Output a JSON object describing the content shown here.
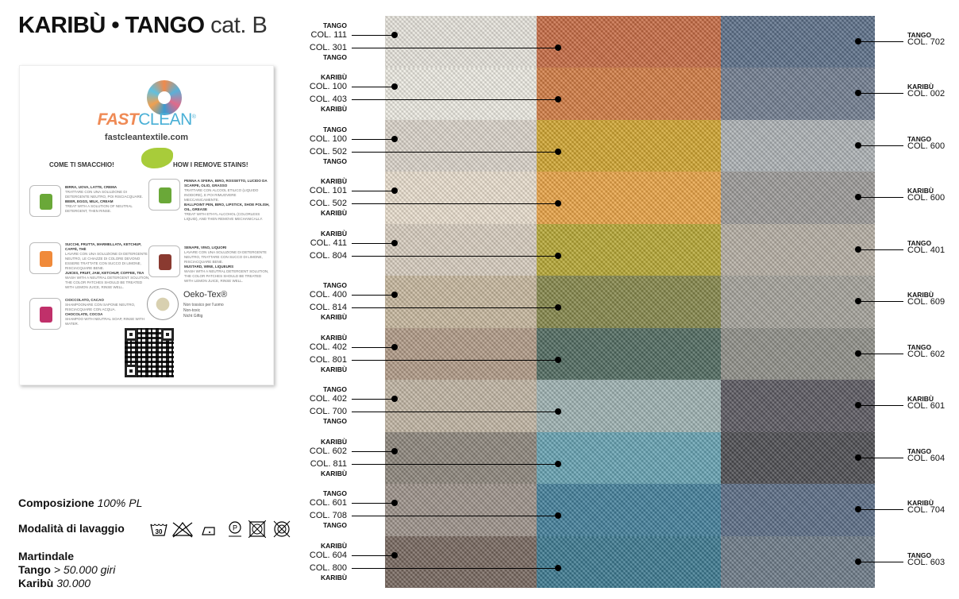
{
  "title": {
    "main": "KARIBÙ • TANGO",
    "cat": "cat. B"
  },
  "card": {
    "brand_fast": "FAST",
    "brand_clean": "CLEAN",
    "reg": "®",
    "site": "fastcleantextile.com",
    "heading_it": "COME TI SMACCHIO!",
    "heading_en": "HOW I REMOVE STAINS!",
    "items": [
      {
        "icon": "drinks-icon",
        "h1": "BIRRA, UOVA, LATTE, CREMA",
        "t1": "TRATTARE CON UNA SOLUZIONE DI DETERGENTE NEUTRO, POI RISCIACQUARE.",
        "h2": "BEER, EGGS, MILK, CREAM",
        "t2": "TREAT WITH A SOLUTION OF NEUTRAL DETERGENT, THEN RINSE."
      },
      {
        "icon": "pens-icon",
        "h1": "PENNA A SFERA, BIRO, ROSSETTO, LUCIDO DA SCARPE, OLIO, GRASSO",
        "t1": "TRATTARE CON ALCOOL ETILICO (LIQUIDO INODORE), E POI RIMUOVERE MECCANICAMENTE.",
        "h2": "BALLPOINT PEN, BIRO, LIPSTICK, SHOE POLISH, OIL, GREASE",
        "t2": "TREAT WITH ETHYL ALCOHOL (COLORLESS LIQUID), AND THEN REMOVE MECHANICALLY."
      },
      {
        "icon": "coffee-icon",
        "h1": "SUCCHI, FRUTTA, MARMELLATA, KETCHUP, CAFFÈ, THÈ",
        "t1": "LAVARE CON UNA SOLUZIONE DI DETERGENTE NEUTRO, LE CHIAZZE DI COLORE DEVONO ESSERE TRATTATE CON SUCCO DI LIMONE, RISCIACQUARE BENE.",
        "h2": "JUICES, FRUIT, JAM, KETCHUP, COFFEE, TEA",
        "t2": "WASH WITH A NEUTRAL DETERGENT SOLUTION, THE COLOR PATCHES SHOULD BE TREATED WITH LEMON JUICE, RINSE WELL."
      },
      {
        "icon": "bottles-icon",
        "h1": "SENAPE, VINO, LIQUORI",
        "t1": "LAVARE CON UNA SOLUZIONE DI DETERGENTE NEUTRO, TRATTARE CON SUCCO DI LIMONE, RISCIACQUARE BENE.",
        "h2": "MUSTARD, WINE, LIQUEURS",
        "t2": "WASH WITH A NEUTRAL DETERGENT SOLUTION, THE COLOR PATCHES SHOULD BE TREATED WITH LEMON JUICE, RINSE WELL."
      },
      {
        "icon": "cake-icon",
        "h1": "CIOCCOLATO, CACAO",
        "t1": "SHAMPOONARE CON SAPONE NEUTRO, RISCIACQUARE CON ACQUA.",
        "h2": "CHOCOLATE, COCOA",
        "t2": "SHAMPOO WITH NEUTRAL SOAP, RINSE WITH WATER."
      }
    ],
    "oeko_title": "Oeko-Tex®",
    "oeko_lines": [
      "Non tossico per l'uomo",
      "Non-toxic",
      "Nicht Giftig"
    ]
  },
  "specs": {
    "comp_label": "Composizione",
    "comp_value": "100% PL",
    "wash_label": "Modalità di lavaggio",
    "care_icons": [
      "wash-30-icon",
      "no-bleach-icon",
      "iron-low-icon",
      "dry-clean-p-icon",
      "no-tumble-dry-icon",
      "no-dry-clean-icon"
    ],
    "wash_temp": "30",
    "mart_label": "Martindale",
    "tango_label": "Tango",
    "tango_value": "> 50.000 giri",
    "karibu_label": "Karibù",
    "karibu_value": "30.000"
  },
  "rows": [
    {
      "c1": "#e9e6de",
      "c2": "#c86a42",
      "c3": "#5b6f89",
      "l_top": {
        "brand": "TANGO",
        "col": "COL. 111"
      },
      "l_bot": {
        "col": "COL. 301",
        "brand": "TANGO"
      },
      "r": {
        "brand": "TANGO",
        "col": "COL. 702"
      }
    },
    {
      "c1": "#efede4",
      "c2": "#d47c42",
      "c3": "#717d90",
      "l_top": {
        "brand": "KARIBÙ",
        "col": "COL. 100"
      },
      "l_bot": {
        "col": "COL. 403",
        "brand": "KARIBÙ"
      },
      "r": {
        "brand": "KARIBÙ",
        "col": "COL. 002"
      }
    },
    {
      "c1": "#dcd5cb",
      "c2": "#d2a62e",
      "c3": "#aeb3b6",
      "l_top": {
        "brand": "TANGO",
        "col": "COL. 100"
      },
      "l_bot": {
        "col": "COL. 502",
        "brand": "TANGO"
      },
      "r": {
        "brand": "TANGO",
        "col": "COL. 600"
      }
    },
    {
      "c1": "#ebe0cf",
      "c2": "#eba444",
      "c3": "#9c9a98",
      "l_top": {
        "brand": "KARIBÙ",
        "col": "COL. 101"
      },
      "l_bot": {
        "col": "COL. 502",
        "brand": "KARIBÙ"
      },
      "r": {
        "brand": "KARIBÙ",
        "col": "COL. 600"
      }
    },
    {
      "c1": "#d9cec0",
      "c2": "#b7a832",
      "c3": "#b6afa4",
      "l_top": {
        "brand": "KARIBÙ",
        "col": "COL. 411"
      },
      "l_bot": {
        "col": "COL. 804",
        "brand": ""
      },
      "r": {
        "brand": "TANGO",
        "col": "COL. 401"
      }
    },
    {
      "c1": "#c8b89e",
      "c2": "#858749",
      "c3": "#a5a39b",
      "l_top": {
        "brand": "TANGO",
        "col": "COL. 400"
      },
      "l_bot": {
        "col": "COL. 814",
        "brand": "KARIBÙ"
      },
      "r": {
        "brand": "KARIBÙ",
        "col": "COL. 609"
      }
    },
    {
      "c1": "#b29b87",
      "c2": "#4f6a5f",
      "c3": "#8f8f88",
      "l_top": {
        "brand": "KARIBÙ",
        "col": "COL. 402"
      },
      "l_bot": {
        "col": "COL. 801",
        "brand": "KARIBÙ"
      },
      "r": {
        "brand": "TANGO",
        "col": "COL. 602"
      }
    },
    {
      "c1": "#c2b6a4",
      "c2": "#9eb3b3",
      "c3": "#5a5860",
      "l_top": {
        "brand": "TANGO",
        "col": "COL. 402"
      },
      "l_bot": {
        "col": "COL. 700",
        "brand": "TANGO"
      },
      "r": {
        "brand": "KARIBÙ",
        "col": "COL. 601"
      }
    },
    {
      "c1": "#8d867c",
      "c2": "#65a3b3",
      "c3": "#4c4c50",
      "l_top": {
        "brand": "KARIBÙ",
        "col": "COL. 602"
      },
      "l_bot": {
        "col": "COL. 811",
        "brand": "KARIBÙ"
      },
      "r": {
        "brand": "TANGO",
        "col": "COL. 604"
      }
    },
    {
      "c1": "#9d928a",
      "c2": "#417f9b",
      "c3": "#5a6c86",
      "l_top": {
        "brand": "TANGO",
        "col": "COL. 601"
      },
      "l_bot": {
        "col": "COL. 708",
        "brand": "TANGO"
      },
      "r": {
        "brand": "KARIBÙ",
        "col": "COL. 704"
      }
    },
    {
      "c1": "#76675d",
      "c2": "#3a7890",
      "c3": "#6c7b88",
      "l_top": {
        "brand": "KARIBÙ",
        "col": "COL. 604"
      },
      "l_bot": {
        "col": "COL. 800",
        "brand": "KARIBÙ"
      },
      "r": {
        "brand": "TANGO",
        "col": "COL. 603"
      }
    }
  ]
}
